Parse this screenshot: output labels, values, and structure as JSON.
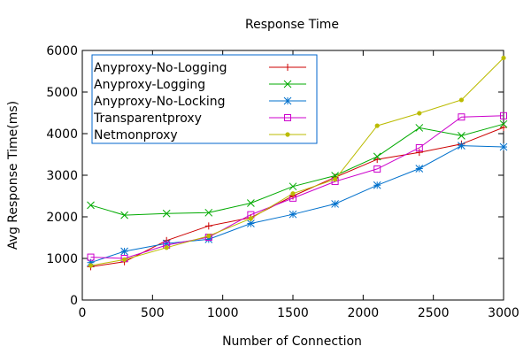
{
  "chart_data": {
    "type": "line",
    "title": "Response Time",
    "xlabel": "Number of Connection",
    "ylabel": "Avg Response Time(ms)",
    "xlim": [
      0,
      3000
    ],
    "ylim": [
      0,
      6000
    ],
    "xticks": [
      0,
      500,
      1000,
      1500,
      2000,
      2500,
      3000
    ],
    "yticks": [
      0,
      1000,
      2000,
      3000,
      4000,
      5000,
      6000
    ],
    "grid": false,
    "legend_position": "top-left",
    "series": [
      {
        "name": "Anyproxy-No-Logging",
        "color": "#cc0000",
        "marker": "plus",
        "x": [
          60,
          300,
          600,
          900,
          1200,
          1500,
          1800,
          2100,
          2400,
          2700,
          3000
        ],
        "y": [
          800,
          920,
          1430,
          1780,
          1980,
          2500,
          2950,
          3380,
          3550,
          3750,
          4150
        ]
      },
      {
        "name": "Anyproxy-Logging",
        "color": "#00aa00",
        "marker": "cross",
        "x": [
          60,
          300,
          600,
          900,
          1200,
          1500,
          1800,
          2100,
          2400,
          2700,
          3000
        ],
        "y": [
          2280,
          2040,
          2080,
          2100,
          2330,
          2730,
          2990,
          3450,
          4140,
          3950,
          4230
        ]
      },
      {
        "name": "Anyproxy-No-Locking",
        "color": "#0070cc",
        "marker": "star",
        "x": [
          60,
          300,
          600,
          900,
          1200,
          1500,
          1800,
          2100,
          2400,
          2700,
          3000
        ],
        "y": [
          900,
          1170,
          1360,
          1460,
          1840,
          2060,
          2310,
          2760,
          3160,
          3710,
          3680
        ]
      },
      {
        "name": "Transparentproxy",
        "color": "#cc00cc",
        "marker": "square",
        "x": [
          60,
          300,
          600,
          900,
          1200,
          1500,
          1800,
          2100,
          2400,
          2700,
          3000
        ],
        "y": [
          1030,
          1000,
          1320,
          1510,
          2050,
          2450,
          2850,
          3150,
          3660,
          4400,
          4430
        ]
      },
      {
        "name": "Netmonproxy",
        "color": "#bbbb00",
        "marker": "dot",
        "x": [
          60,
          300,
          600,
          900,
          1200,
          1500,
          1800,
          2100,
          2400,
          2700,
          3000
        ],
        "y": [
          830,
          970,
          1260,
          1540,
          1960,
          2560,
          2900,
          4190,
          4490,
          4810,
          5820
        ]
      }
    ]
  }
}
